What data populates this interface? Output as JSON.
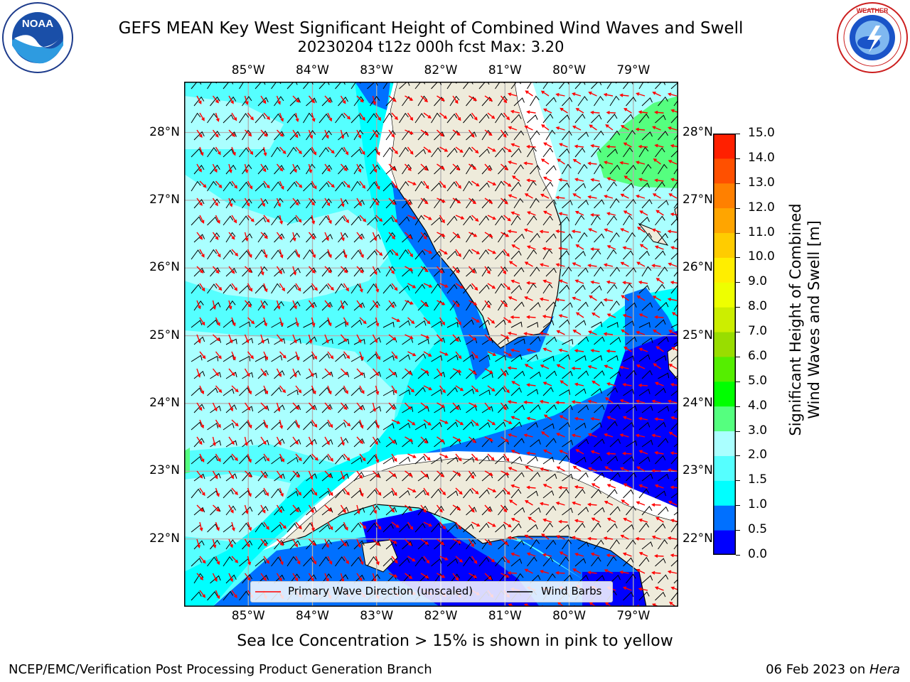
{
  "title": {
    "line1": "GEFS MEAN Key West Significant Height of Combined Wind Waves and Swell",
    "line2": "20230204 t12z 000h fcst   Max: 3.20"
  },
  "logos": {
    "noaa_text": "NOAA",
    "noaa_ring": "NATIONAL OCEANIC AND ATMOSPHERIC ADMINISTRATION · U.S. DEPARTMENT OF COMMERCE",
    "nws_ring": "NATIONAL WEATHER SERVICE"
  },
  "map": {
    "lon_labels": [
      "85°W",
      "84°W",
      "83°W",
      "82°W",
      "81°W",
      "80°W",
      "79°W"
    ],
    "lat_labels": [
      "28°N",
      "27°N",
      "26°N",
      "25°N",
      "24°N",
      "23°N",
      "22°N"
    ],
    "lon_range": [
      -86.0,
      -78.3
    ],
    "lat_range": [
      21.0,
      28.75
    ],
    "colors": {
      "land": "#eeebdb",
      "coast_strip": "#ffffff",
      "grid": "#b0b0b0",
      "arrow": "#ff0000",
      "barb": "#000000"
    }
  },
  "legend": {
    "wave_label": "Primary Wave Direction (unscaled)",
    "barb_label": "Wind Barbs"
  },
  "colorbar": {
    "title_line1": "Significant Height of Combined",
    "title_line2": "Wind Waves and Swell [m]",
    "ticks": [
      "0.0",
      "0.5",
      "1.0",
      "1.5",
      "2.0",
      "3.0",
      "4.0",
      "5.0",
      "6.0",
      "7.0",
      "8.0",
      "9.0",
      "10.0",
      "11.0",
      "12.0",
      "13.0",
      "14.0",
      "15.0"
    ],
    "colors": [
      "#0000ff",
      "#0070ff",
      "#00ffff",
      "#55ffff",
      "#aaffff",
      "#55ff7f",
      "#00ff00",
      "#55ee00",
      "#99dd00",
      "#ccee00",
      "#eeff00",
      "#ffee00",
      "#ffcc00",
      "#ffa500",
      "#ff8000",
      "#ff5000",
      "#ff2000"
    ]
  },
  "footer": {
    "note": "Sea Ice Concentration > 15% is shown in pink to yellow",
    "credit": "NCEP/EMC/Verification Post Processing Product Generation Branch",
    "date": "06 Feb 2023 on ",
    "host": "Hera"
  }
}
